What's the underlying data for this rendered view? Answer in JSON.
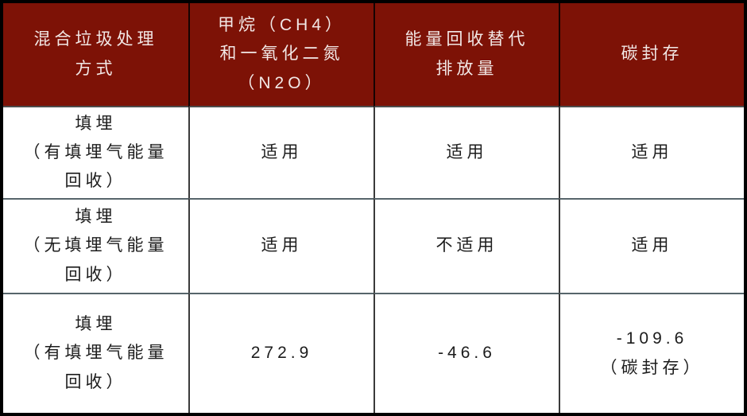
{
  "table": {
    "header": {
      "cells": [
        "混合垃圾处理\n方式",
        "甲烷（CH4）\n和一氧化二氮\n（N2O）",
        "能量回收替代\n排放量",
        "碳封存"
      ]
    },
    "rows": [
      {
        "cells": [
          "填埋\n（有填埋气能量\n回收）",
          "适用",
          "适用",
          "适用"
        ]
      },
      {
        "cells": [
          "填埋\n（无填埋气能量\n回收）",
          "适用",
          "不适用",
          "适用"
        ]
      },
      {
        "cells": [
          "填埋\n（有填埋气能量\n回收）",
          "272.9",
          "-46.6",
          "-109.6\n（碳封存）"
        ]
      }
    ]
  },
  "chart_data": {
    "type": "table",
    "columns": [
      "混合垃圾处理方式",
      "甲烷（CH4）和一氧化二氮（N2O）",
      "能量回收替代排放量",
      "碳封存"
    ],
    "rows": [
      [
        "填埋（有填埋气能量回收）",
        "适用",
        "适用",
        "适用"
      ],
      [
        "填埋（无填埋气能量回收）",
        "适用",
        "不适用",
        "适用"
      ],
      [
        "填埋（有填埋气能量回收）",
        "272.9",
        "-46.6",
        "-109.6（碳封存）"
      ]
    ]
  },
  "colors": {
    "header_background": "#7d1206",
    "header_text": "#f2e8e6",
    "body_text": "#1c1c1c",
    "outer_border": "#000000",
    "horizontal_grid": "#57656b",
    "vertical_grid": "#3a3a3a"
  }
}
